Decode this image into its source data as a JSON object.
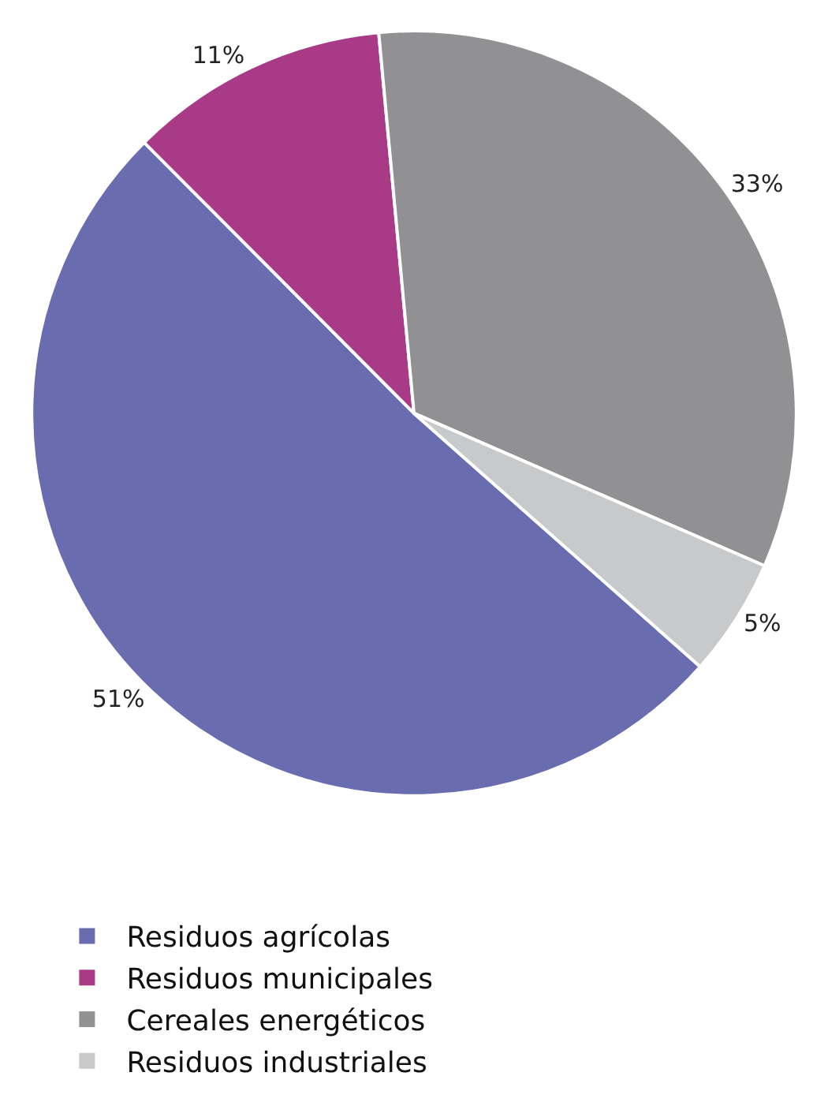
{
  "chart_data": {
    "type": "pie",
    "categories": [
      "Residuos agrícolas",
      "Residuos municipales",
      "Cereales energéticos",
      "Residuos industriales"
    ],
    "values": [
      51,
      11,
      33,
      5
    ],
    "colors": [
      "#6a6cb0",
      "#a83a86",
      "#919194",
      "#c8c9cb"
    ],
    "value_labels": [
      "51%",
      "11%",
      "33%",
      "5%"
    ],
    "legend": "bottom"
  }
}
